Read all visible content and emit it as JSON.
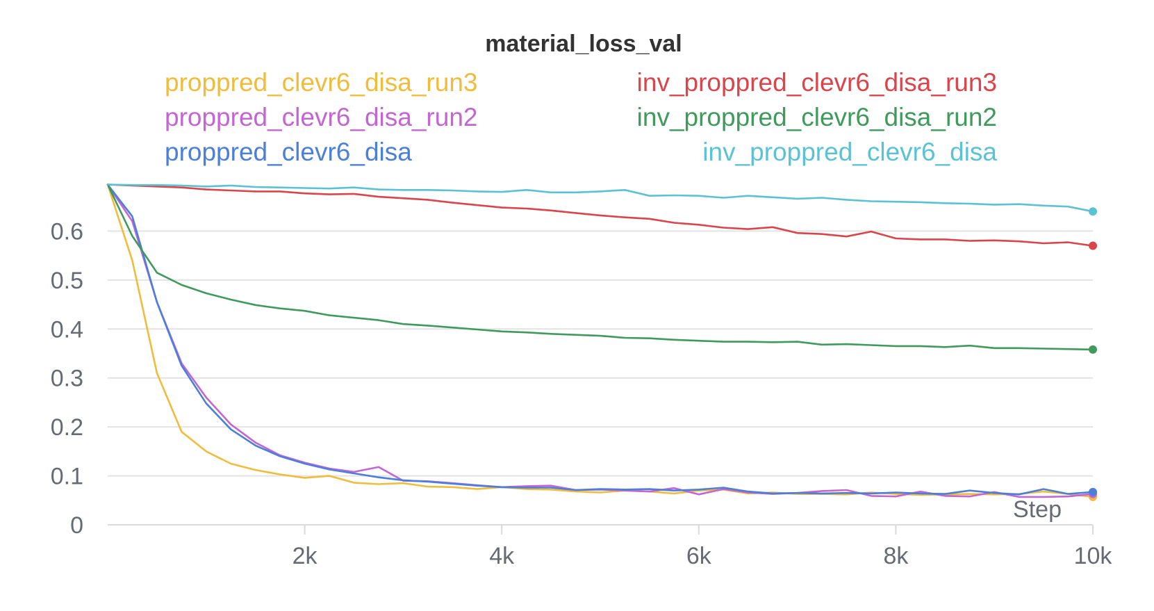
{
  "chart_data": {
    "type": "line",
    "title": "material_loss_val",
    "xlabel": "Step",
    "ylabel": "",
    "xlim": [
      0,
      10000
    ],
    "ylim": [
      0,
      0.7
    ],
    "yticks": [
      {
        "value": 0,
        "label": "0"
      },
      {
        "value": 0.1,
        "label": "0.1"
      },
      {
        "value": 0.2,
        "label": "0.2"
      },
      {
        "value": 0.3,
        "label": "0.3"
      },
      {
        "value": 0.4,
        "label": "0.4"
      },
      {
        "value": 0.5,
        "label": "0.5"
      },
      {
        "value": 0.6,
        "label": "0.6"
      }
    ],
    "xticks": [
      {
        "value": 2000,
        "label": "2k"
      },
      {
        "value": 4000,
        "label": "4k"
      },
      {
        "value": 6000,
        "label": "6k"
      },
      {
        "value": 8000,
        "label": "8k"
      },
      {
        "value": 10000,
        "label": "10k"
      }
    ],
    "grid": true,
    "legend_position": "top",
    "x": [
      0,
      250,
      500,
      750,
      1000,
      1250,
      1500,
      1750,
      2000,
      2250,
      2500,
      2750,
      3000,
      3250,
      3500,
      3750,
      4000,
      4250,
      4500,
      4750,
      5000,
      5250,
      5500,
      5750,
      6000,
      6250,
      6500,
      6750,
      7000,
      7250,
      7500,
      7750,
      8000,
      8250,
      8500,
      8750,
      9000,
      9250,
      9500,
      9750,
      10000
    ],
    "series": [
      {
        "name": "proppred_clevr6_disa_run3",
        "color": "#f0bc3c",
        "values": [
          0.695,
          0.54,
          0.31,
          0.19,
          0.15,
          0.125,
          0.112,
          0.103,
          0.096,
          0.1,
          0.086,
          0.083,
          0.085,
          0.078,
          0.077,
          0.073,
          0.077,
          0.073,
          0.072,
          0.068,
          0.066,
          0.07,
          0.068,
          0.064,
          0.07,
          0.072,
          0.064,
          0.066,
          0.063,
          0.063,
          0.062,
          0.066,
          0.063,
          0.061,
          0.062,
          0.063,
          0.062,
          0.063,
          0.068,
          0.063,
          0.057
        ]
      },
      {
        "name": "proppred_clevr6_disa_run2",
        "color": "#c466d2",
        "values": [
          0.695,
          0.62,
          0.455,
          0.33,
          0.26,
          0.205,
          0.168,
          0.142,
          0.127,
          0.115,
          0.108,
          0.118,
          0.09,
          0.089,
          0.085,
          0.081,
          0.077,
          0.079,
          0.08,
          0.071,
          0.072,
          0.07,
          0.068,
          0.075,
          0.062,
          0.073,
          0.066,
          0.063,
          0.065,
          0.069,
          0.071,
          0.059,
          0.058,
          0.068,
          0.059,
          0.058,
          0.067,
          0.057,
          0.057,
          0.058,
          0.063
        ]
      },
      {
        "name": "proppred_clevr6_disa",
        "color": "#4b7fd9",
        "values": [
          0.695,
          0.63,
          0.455,
          0.325,
          0.248,
          0.195,
          0.162,
          0.14,
          0.125,
          0.113,
          0.105,
          0.097,
          0.091,
          0.088,
          0.084,
          0.08,
          0.077,
          0.076,
          0.076,
          0.071,
          0.073,
          0.072,
          0.073,
          0.07,
          0.072,
          0.076,
          0.068,
          0.064,
          0.065,
          0.064,
          0.065,
          0.064,
          0.066,
          0.064,
          0.063,
          0.07,
          0.065,
          0.062,
          0.073,
          0.063,
          0.067
        ]
      },
      {
        "name": "inv_proppred_clevr6_disa_run3",
        "color": "#d9454a",
        "values": [
          0.695,
          0.693,
          0.691,
          0.689,
          0.685,
          0.683,
          0.681,
          0.681,
          0.677,
          0.675,
          0.676,
          0.67,
          0.667,
          0.664,
          0.658,
          0.653,
          0.648,
          0.646,
          0.642,
          0.637,
          0.632,
          0.628,
          0.625,
          0.617,
          0.613,
          0.607,
          0.604,
          0.608,
          0.596,
          0.594,
          0.589,
          0.599,
          0.585,
          0.583,
          0.583,
          0.58,
          0.581,
          0.579,
          0.575,
          0.577,
          0.57
        ]
      },
      {
        "name": "inv_proppred_clevr6_disa_run2",
        "color": "#3f9a5b",
        "values": [
          0.695,
          0.59,
          0.515,
          0.49,
          0.473,
          0.46,
          0.449,
          0.442,
          0.437,
          0.428,
          0.423,
          0.418,
          0.41,
          0.407,
          0.403,
          0.399,
          0.395,
          0.393,
          0.39,
          0.388,
          0.386,
          0.382,
          0.381,
          0.378,
          0.376,
          0.374,
          0.374,
          0.373,
          0.374,
          0.368,
          0.369,
          0.367,
          0.365,
          0.365,
          0.363,
          0.366,
          0.361,
          0.361,
          0.36,
          0.359,
          0.358
        ]
      },
      {
        "name": "inv_proppred_clevr6_disa",
        "color": "#5bc2d6",
        "values": [
          0.695,
          0.694,
          0.694,
          0.693,
          0.691,
          0.693,
          0.69,
          0.689,
          0.688,
          0.687,
          0.689,
          0.685,
          0.684,
          0.684,
          0.683,
          0.681,
          0.68,
          0.684,
          0.679,
          0.679,
          0.681,
          0.684,
          0.672,
          0.673,
          0.672,
          0.668,
          0.672,
          0.669,
          0.666,
          0.668,
          0.664,
          0.661,
          0.66,
          0.659,
          0.657,
          0.656,
          0.654,
          0.655,
          0.652,
          0.65,
          0.64
        ]
      }
    ]
  }
}
